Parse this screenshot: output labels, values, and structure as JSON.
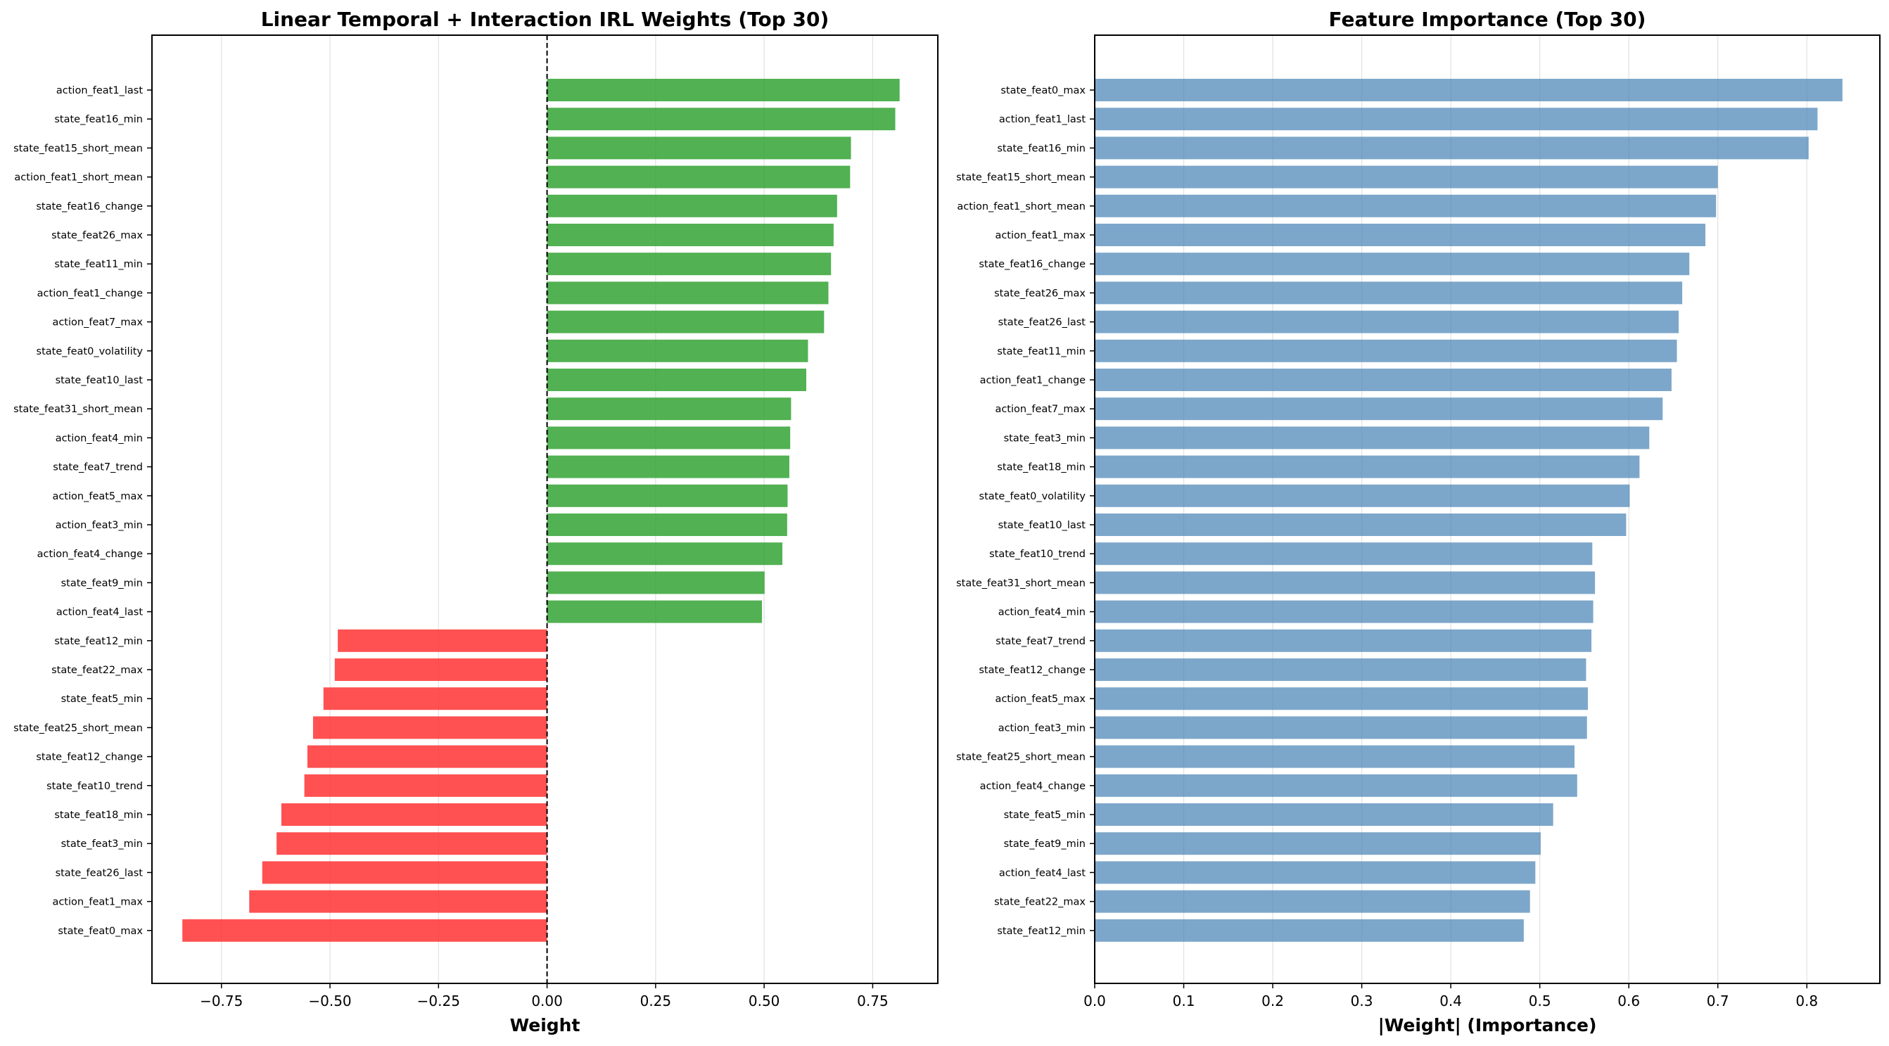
{
  "chart_data": [
    {
      "type": "bar",
      "orientation": "horizontal",
      "title": "Linear Temporal + Interaction IRL Weights (Top 30)",
      "xlabel": "Weight",
      "ylabel": "",
      "xlim": [
        -0.91,
        0.9
      ],
      "xticks": [
        -0.75,
        -0.5,
        -0.25,
        0.0,
        0.25,
        0.5,
        0.75
      ],
      "xtick_labels": [
        "−0.75",
        "−0.50",
        "−0.25",
        "0.00",
        "0.25",
        "0.50",
        "0.75"
      ],
      "grid": "x",
      "zero_line": "dashed",
      "positive_color": "#2ca02c",
      "negative_color": "#ff2b2b",
      "categories": [
        "action_feat1_last",
        "state_feat16_min",
        "state_feat15_short_mean",
        "action_feat1_short_mean",
        "state_feat16_change",
        "state_feat26_max",
        "state_feat11_min",
        "action_feat1_change",
        "action_feat7_max",
        "state_feat0_volatility",
        "state_feat10_last",
        "state_feat31_short_mean",
        "action_feat4_min",
        "state_feat7_trend",
        "action_feat5_max",
        "action_feat3_min",
        "action_feat4_change",
        "state_feat9_min",
        "action_feat4_last",
        "state_feat12_min",
        "state_feat22_max",
        "state_feat5_min",
        "state_feat25_short_mean",
        "state_feat12_change",
        "state_feat10_trend",
        "state_feat18_min",
        "state_feat3_min",
        "state_feat26_last",
        "action_feat1_max",
        "state_feat0_max"
      ],
      "values": [
        0.812,
        0.802,
        0.7,
        0.698,
        0.668,
        0.66,
        0.654,
        0.648,
        0.638,
        0.601,
        0.597,
        0.562,
        0.56,
        0.558,
        0.554,
        0.553,
        0.542,
        0.501,
        0.495,
        -0.482,
        -0.489,
        -0.515,
        -0.539,
        -0.552,
        -0.559,
        -0.612,
        -0.623,
        -0.656,
        -0.686,
        -0.84
      ]
    },
    {
      "type": "bar",
      "orientation": "horizontal",
      "title": "Feature Importance (Top 30)",
      "xlabel": "|Weight| (Importance)",
      "ylabel": "",
      "xlim": [
        0,
        0.882
      ],
      "xticks": [
        0.0,
        0.1,
        0.2,
        0.3,
        0.4,
        0.5,
        0.6,
        0.7,
        0.8
      ],
      "xtick_labels": [
        "0.0",
        "0.1",
        "0.2",
        "0.3",
        "0.4",
        "0.5",
        "0.6",
        "0.7",
        "0.8"
      ],
      "grid": "x",
      "bar_color": "#4682b4",
      "categories": [
        "state_feat0_max",
        "action_feat1_last",
        "state_feat16_min",
        "state_feat15_short_mean",
        "action_feat1_short_mean",
        "action_feat1_max",
        "state_feat16_change",
        "state_feat26_max",
        "state_feat26_last",
        "state_feat11_min",
        "action_feat1_change",
        "action_feat7_max",
        "state_feat3_min",
        "state_feat18_min",
        "state_feat0_volatility",
        "state_feat10_last",
        "state_feat10_trend",
        "state_feat31_short_mean",
        "action_feat4_min",
        "state_feat7_trend",
        "state_feat12_change",
        "action_feat5_max",
        "action_feat3_min",
        "state_feat25_short_mean",
        "action_feat4_change",
        "state_feat5_min",
        "state_feat9_min",
        "action_feat4_last",
        "state_feat22_max",
        "state_feat12_min"
      ],
      "values": [
        0.84,
        0.812,
        0.802,
        0.7,
        0.698,
        0.686,
        0.668,
        0.66,
        0.656,
        0.654,
        0.648,
        0.638,
        0.623,
        0.612,
        0.601,
        0.597,
        0.559,
        0.562,
        0.56,
        0.558,
        0.552,
        0.554,
        0.553,
        0.539,
        0.542,
        0.515,
        0.501,
        0.495,
        0.489,
        0.482
      ]
    }
  ]
}
